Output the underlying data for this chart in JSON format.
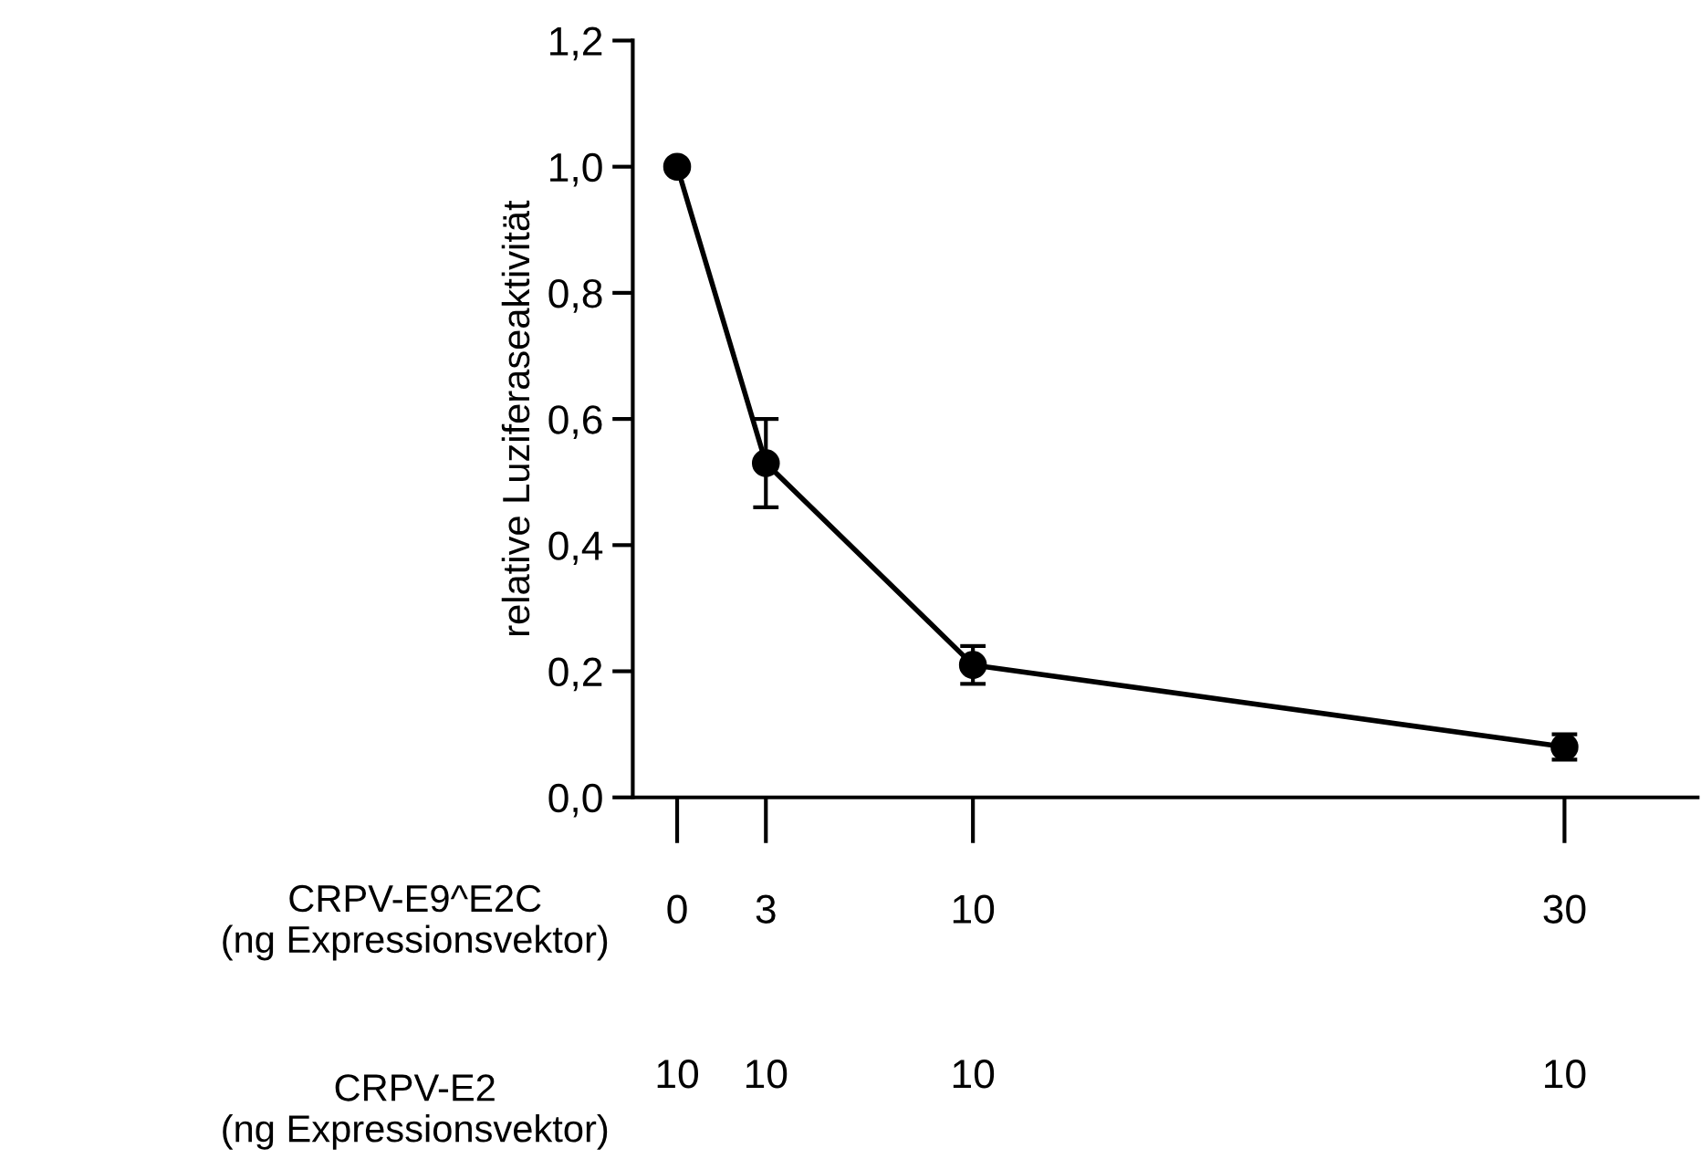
{
  "chart_data": {
    "type": "line",
    "ylabel": "relative Luziferaseaktivität",
    "xlabel": "CRPV-E9^E2C\n(ng Expressionsvektor)",
    "annotations": [
      "CRPV-E2\n(ng Expressionsvektor)",
      "10",
      "10",
      "10",
      "10"
    ],
    "x": [
      0,
      3,
      10,
      30
    ],
    "series": [
      {
        "color": "#000000",
        "values": [
          1.0,
          0.53,
          0.21,
          0.08
        ],
        "errors": [
          null,
          0.07,
          0.03,
          0.02
        ]
      }
    ],
    "marker": "circle",
    "line_style": "solid",
    "grid": false,
    "xlim": [
      -1.5,
      34.5
    ],
    "xticks": [
      0,
      3,
      10,
      30
    ],
    "ylim": [
      0,
      1.2
    ],
    "yticks": [
      {
        "value": 0,
        "label": "0,0"
      },
      {
        "value": 0.2,
        "label": "0,2"
      },
      {
        "value": 0.4,
        "label": "0,4"
      },
      {
        "value": 0.6,
        "label": "0,6"
      },
      {
        "value": 0.8,
        "label": "0,8"
      },
      {
        "value": 1.0,
        "label": "1,0"
      },
      {
        "value": 1.2,
        "label": "1,2"
      }
    ]
  }
}
